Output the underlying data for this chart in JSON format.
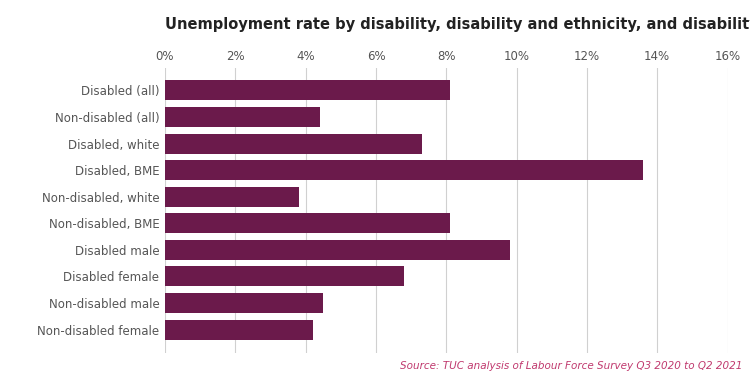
{
  "title": "Unemployment rate by disability, disability and ethnicity, and disability and gender",
  "categories": [
    "Non-disabled female",
    "Non-disabled male",
    "Disabled female",
    "Disabled male",
    "Non-disabled, BME",
    "Non-disabled, white",
    "Disabled, BME",
    "Disabled, white",
    "Non-disabled (all)",
    "Disabled (all)"
  ],
  "values": [
    4.2,
    4.5,
    6.8,
    9.8,
    8.1,
    3.8,
    13.6,
    7.3,
    4.4,
    8.1
  ],
  "bar_color": "#6b1a4b",
  "xlim": [
    0,
    16
  ],
  "xticks": [
    0,
    2,
    4,
    6,
    8,
    10,
    12,
    14,
    16
  ],
  "source_text": "Source: TUC analysis of Labour Force Survey Q3 2020 to Q2 2021",
  "source_color": "#c0396e",
  "title_fontsize": 10.5,
  "tick_fontsize": 8.5,
  "label_fontsize": 8.5,
  "source_fontsize": 7.5,
  "background_color": "#ffffff",
  "grid_color": "#d0d0d0"
}
